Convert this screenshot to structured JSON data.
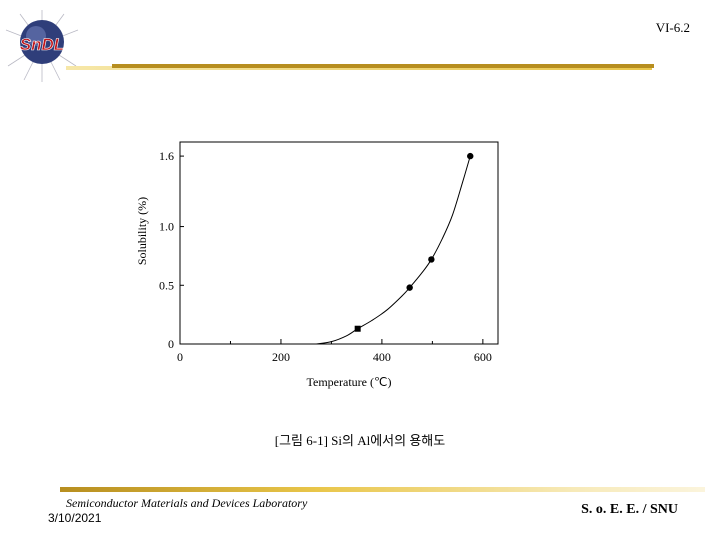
{
  "header": {
    "logo_text": "SnDL",
    "slide_number": "VI-6.2"
  },
  "chart_data": {
    "type": "scatter",
    "xlabel": "Temperature (℃)",
    "ylabel": "Solubility (%)",
    "xlim": [
      0,
      630
    ],
    "ylim": [
      0,
      1.72
    ],
    "x_ticks": [
      "0",
      "200",
      "400",
      "600"
    ],
    "y_ticks": [
      "0",
      "0.5",
      "1.0",
      "1.6"
    ],
    "x_tick_values": [
      0,
      200,
      400,
      600
    ],
    "y_tick_values": [
      0,
      0.5,
      1.0,
      1.6
    ],
    "points": [
      {
        "x": 352,
        "y": 0.13
      },
      {
        "x": 455,
        "y": 0.48
      },
      {
        "x": 498,
        "y": 0.72
      },
      {
        "x": 575,
        "y": 1.6
      }
    ],
    "curve": [
      {
        "x": 270,
        "y": 0.0
      },
      {
        "x": 300,
        "y": 0.02
      },
      {
        "x": 330,
        "y": 0.07
      },
      {
        "x": 352,
        "y": 0.13
      },
      {
        "x": 380,
        "y": 0.2
      },
      {
        "x": 410,
        "y": 0.29
      },
      {
        "x": 440,
        "y": 0.41
      },
      {
        "x": 455,
        "y": 0.48
      },
      {
        "x": 480,
        "y": 0.61
      },
      {
        "x": 498,
        "y": 0.72
      },
      {
        "x": 520,
        "y": 0.9
      },
      {
        "x": 540,
        "y": 1.1
      },
      {
        "x": 560,
        "y": 1.38
      },
      {
        "x": 575,
        "y": 1.6
      }
    ],
    "grid": false,
    "legend": "none"
  },
  "caption": "[그림 6-1] Si의 Al에서의 용해도",
  "footer": {
    "lab_name": "Semiconductor Materials and Devices Laboratory",
    "date": "3/10/2021",
    "university": "S. o. E. E. / SNU"
  },
  "colors": {
    "gold_dark": "#b78e1f",
    "gold_light": "#e9c64a",
    "logo_red": "#c0161b",
    "logo_gray": "#b9b9c4"
  }
}
